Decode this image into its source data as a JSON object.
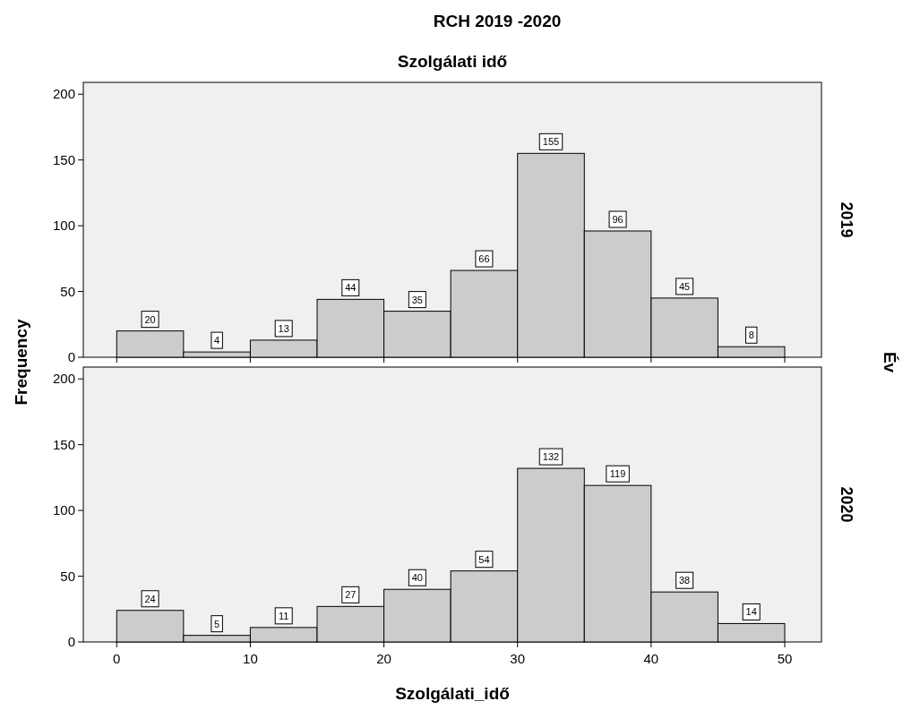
{
  "chart_data": [
    {
      "type": "histogram",
      "title": "RCH 2019 -2020",
      "subtitle": "Szolgálati idő",
      "ylabel": "Frequency",
      "y2label": "2019",
      "annotations": [
        "Év"
      ],
      "bins": [
        0,
        5,
        10,
        15,
        20,
        25,
        30,
        35,
        40,
        45,
        50
      ],
      "values": [
        20,
        4,
        13,
        44,
        35,
        66,
        155,
        96,
        45,
        8
      ],
      "color": "#cccccc",
      "xlim": [
        -2.5,
        52.75
      ],
      "ylim": [
        0,
        209
      ],
      "xticks": [
        0,
        10,
        20,
        30,
        40,
        50
      ],
      "yticks": [
        0,
        50,
        100,
        150,
        200
      ],
      "tick_labels": "y",
      "data_labels": true,
      "grid": false
    },
    {
      "type": "histogram",
      "xlabel": "Szolgálati_idő",
      "y2label": "2020",
      "bins": [
        0,
        5,
        10,
        15,
        20,
        25,
        30,
        35,
        40,
        45,
        50
      ],
      "values": [
        24,
        5,
        11,
        27,
        40,
        54,
        132,
        119,
        38,
        14
      ],
      "color": "#cccccc",
      "xlim": [
        -2.5,
        52.75
      ],
      "ylim": [
        0,
        209
      ],
      "xticks": [
        0,
        10,
        20,
        30,
        40,
        50
      ],
      "yticks": [
        0,
        50,
        100,
        150,
        200
      ],
      "data_labels": true,
      "grid": false
    }
  ]
}
